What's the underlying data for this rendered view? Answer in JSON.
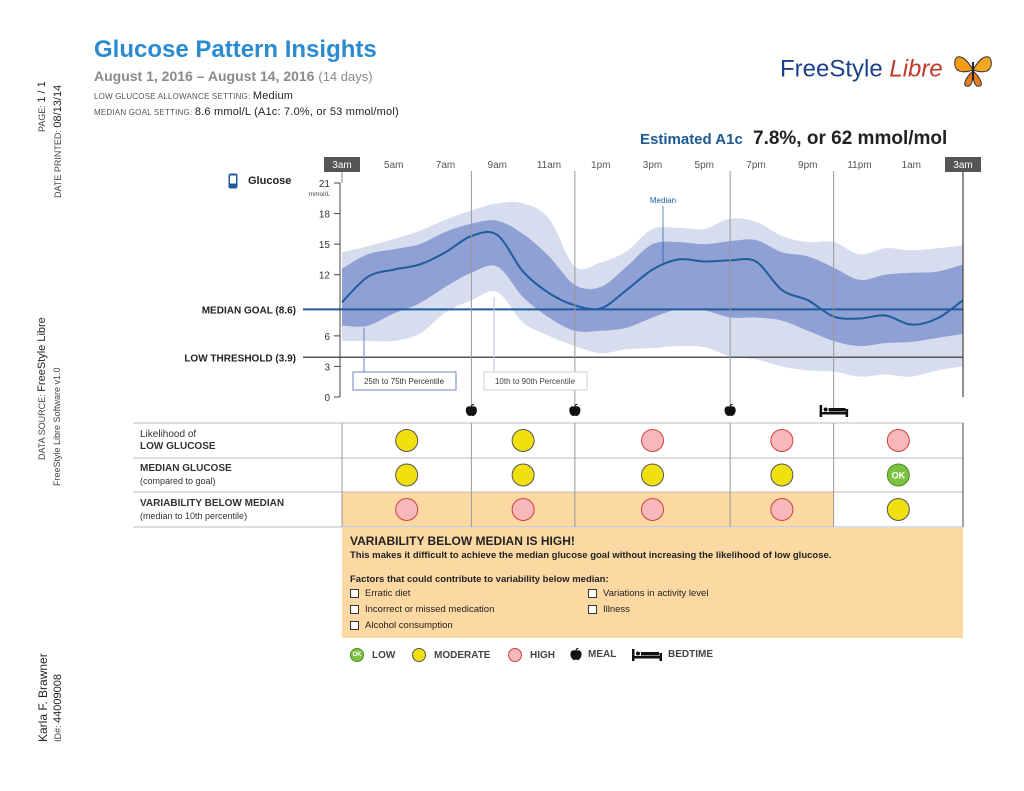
{
  "header": {
    "title": "Glucose Pattern Insights",
    "date_range": "August 1, 2016 – August 14, 2016",
    "days": "(14 days)",
    "low_setting_label": "LOW GLUCOSE ALLOWANCE SETTING:",
    "low_setting_value": "Medium",
    "median_setting_label": "MEDIAN GOAL SETTING:",
    "median_setting_value": "8.6 mmol/L (A1c: 7.0%, or 53 mmol/mol)",
    "logo_main": "FreeStyle",
    "logo_sub": "Libre",
    "a1c_label": "Estimated A1c",
    "a1c_value": "7.8%, or 62 mmol/mol"
  },
  "side": {
    "page_label": "PAGE:",
    "page_value": "1 / 1",
    "printed_label": "DATE PRINTED:",
    "printed_value": "08/13/14",
    "source_label": "DATA SOURCE:",
    "source_value": "FreeStyle Libre",
    "software": "FreeStyle Libre Software v1.0",
    "patient_name": "Karla F. Brawner",
    "patient_id_label": "ID#:",
    "patient_id": "44009008"
  },
  "chart_data": {
    "type": "area",
    "title": "Glucose",
    "ylabel": "mmol/L",
    "ylim": [
      0,
      21
    ],
    "yticks": [
      0,
      3,
      6,
      12,
      15,
      18,
      21
    ],
    "time_labels": [
      "3am",
      "5am",
      "7am",
      "9am",
      "11am",
      "1pm",
      "3pm",
      "5pm",
      "7pm",
      "9pm",
      "11pm",
      "1am",
      "3am"
    ],
    "hours": [
      3,
      4,
      5,
      6,
      7,
      8,
      9,
      10,
      11,
      12,
      13,
      14,
      15,
      16,
      17,
      18,
      19,
      20,
      21,
      22,
      23,
      24,
      25,
      26,
      27
    ],
    "median": [
      9.3,
      11.8,
      12.5,
      13.0,
      14.2,
      15.8,
      15.9,
      12.3,
      10.2,
      9.0,
      8.7,
      10.5,
      12.5,
      13.5,
      13.3,
      13.4,
      13.3,
      10.5,
      9.5,
      7.9,
      7.7,
      8.0,
      7.1,
      7.7,
      9.5
    ],
    "p25": [
      7.0,
      7.0,
      8.2,
      9.2,
      10.8,
      12.2,
      12.8,
      9.8,
      7.8,
      6.5,
      6.5,
      6.8,
      7.8,
      8.6,
      8.5,
      7.8,
      7.8,
      7.5,
      6.5,
      5.5,
      5.0,
      5.3,
      5.4,
      5.8,
      6.2
    ],
    "p75": [
      12.6,
      14.0,
      14.5,
      15.0,
      16.2,
      17.0,
      17.3,
      16.0,
      13.8,
      11.0,
      10.8,
      12.8,
      15.0,
      15.2,
      15.0,
      15.3,
      15.4,
      14.2,
      13.8,
      12.7,
      11.5,
      12.0,
      12.2,
      12.3,
      13.0
    ],
    "p10": [
      5.5,
      5.5,
      5.5,
      6.2,
      8.3,
      9.5,
      10.3,
      7.3,
      6.0,
      5.0,
      4.3,
      4.7,
      4.8,
      5.0,
      4.9,
      4.0,
      3.7,
      3.0,
      2.6,
      2.5,
      2.0,
      2.2,
      2.0,
      2.6,
      3.0
    ],
    "p90": [
      14.2,
      14.8,
      15.5,
      16.3,
      17.4,
      18.3,
      19.0,
      19.0,
      17.5,
      12.8,
      13.2,
      14.3,
      16.5,
      16.6,
      16.5,
      17.5,
      17.2,
      15.8,
      15.2,
      15.2,
      14.0,
      14.6,
      14.4,
      14.6,
      14.9
    ],
    "median_goal": 8.6,
    "low_threshold": 3.9,
    "median_goal_label": "MEDIAN GOAL (8.6)",
    "low_threshold_label": "LOW THRESHOLD (3.9)",
    "median_annotation": "Median",
    "p25_75_label": "25th to 75th Percentile",
    "p10_90_label": "10th to 90th Percentile",
    "period_boundaries": [
      8,
      12,
      18,
      22
    ],
    "meal_times": [
      8,
      12,
      18
    ],
    "bedtime": 22,
    "colors": {
      "inner": "#8ea0d4",
      "outer": "#d7dcef",
      "median": "#1f5d9e",
      "goal": "#1f5d9e",
      "low": "#555555"
    }
  },
  "grid": {
    "rows": [
      {
        "label_small": "Likelihood of",
        "label": "LOW GLUCOSE",
        "values": [
          "moderate",
          "moderate",
          "high",
          "high",
          "high"
        ]
      },
      {
        "label": "MEDIAN GLUCOSE",
        "label_sub": "(compared to goal)",
        "values": [
          "moderate",
          "moderate",
          "moderate",
          "moderate",
          "low"
        ]
      },
      {
        "label": "VARIABILITY BELOW MEDIAN",
        "label_sub": "(median to 10th percentile)",
        "values": [
          "high",
          "high",
          "high",
          "high",
          "moderate"
        ]
      }
    ],
    "ok_text": "OK"
  },
  "warning": {
    "title": "VARIABILITY BELOW MEDIAN IS HIGH!",
    "desc": "This makes it difficult to achieve the median glucose goal without increasing the likelihood of low glucose.",
    "factors_header": "Factors that could contribute to variability below median:",
    "factors": [
      "Erratic diet",
      "Incorrect or missed medication",
      "Alcohol consumption",
      "Variations in activity level",
      "Illness"
    ]
  },
  "legend": {
    "low": "LOW",
    "moderate": "MODERATE",
    "high": "HIGH",
    "meal": "MEAL",
    "bedtime": "BEDTIME"
  },
  "status_colors": {
    "low": "#7cc242",
    "moderate": "#f0e010",
    "high": "#f7b8bc"
  }
}
